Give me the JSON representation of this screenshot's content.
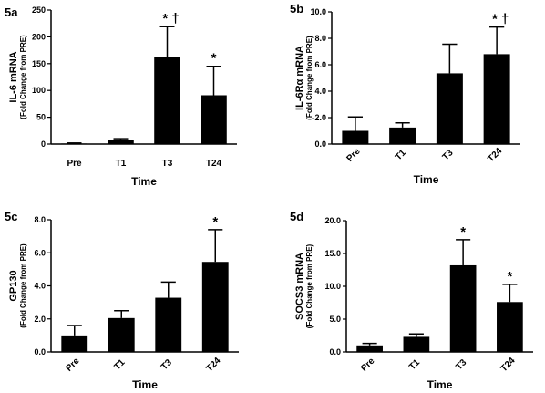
{
  "chart_data": [
    {
      "type": "bar",
      "panel_label": "5a",
      "title": "",
      "ylabel": "IL-6 mRNA",
      "ylabel_sub": "(Fold Change from PRE)",
      "xlabel": "Time",
      "categories": [
        "Pre",
        "T1",
        "T3",
        "T24"
      ],
      "values": [
        1,
        7,
        163,
        91
      ],
      "errors": [
        1,
        3,
        56,
        54
      ],
      "ylim": [
        0,
        250
      ],
      "yticks": [
        "0",
        "50",
        "100",
        "150",
        "200",
        "250"
      ],
      "annotations": [
        "",
        "",
        "* †",
        "*"
      ],
      "cat_rotated": false
    },
    {
      "type": "bar",
      "panel_label": "5b",
      "title": "",
      "ylabel": "IL-6Rα  mRNA",
      "ylabel_sub": "(Fold Change from PRE)",
      "xlabel": "Time",
      "categories": [
        "Pre",
        "T1",
        "T3",
        "T24"
      ],
      "values": [
        1.0,
        1.25,
        5.35,
        6.8
      ],
      "errors": [
        1.05,
        0.35,
        2.2,
        2.05
      ],
      "ylim": [
        0,
        10
      ],
      "yticks": [
        "0.0",
        "2.0",
        "4.0",
        "6.0",
        "8.0",
        "10.0"
      ],
      "annotations": [
        "",
        "",
        "",
        "* †"
      ],
      "cat_rotated": true
    },
    {
      "type": "bar",
      "panel_label": "5c",
      "title": "",
      "ylabel": "GP130",
      "ylabel_sub": "(Fold Change from PRE)",
      "xlabel": "Time",
      "categories": [
        "Pre",
        "T1",
        "T3",
        "T24"
      ],
      "values": [
        1.0,
        2.05,
        3.28,
        5.45
      ],
      "errors": [
        0.6,
        0.45,
        0.95,
        1.95
      ],
      "ylim": [
        0,
        8
      ],
      "yticks": [
        "0.0",
        "2.0",
        "4.0",
        "6.0",
        "8.0"
      ],
      "annotations": [
        "",
        "",
        "",
        "*"
      ],
      "cat_rotated": true
    },
    {
      "type": "bar",
      "panel_label": "5d",
      "title": "",
      "ylabel": "SOCS3 mRNA",
      "ylabel_sub": "(Fold Change from PRE)",
      "xlabel": "Time",
      "categories": [
        "Pre",
        "T1",
        "T3",
        "T24"
      ],
      "values": [
        1.0,
        2.3,
        13.2,
        7.6
      ],
      "errors": [
        0.3,
        0.45,
        3.9,
        2.7
      ],
      "ylim": [
        0,
        20
      ],
      "yticks": [
        "0.0",
        "5.0",
        "10.0",
        "15.0",
        "20.0"
      ],
      "annotations": [
        "",
        "",
        "*",
        "*"
      ],
      "cat_rotated": true
    }
  ]
}
